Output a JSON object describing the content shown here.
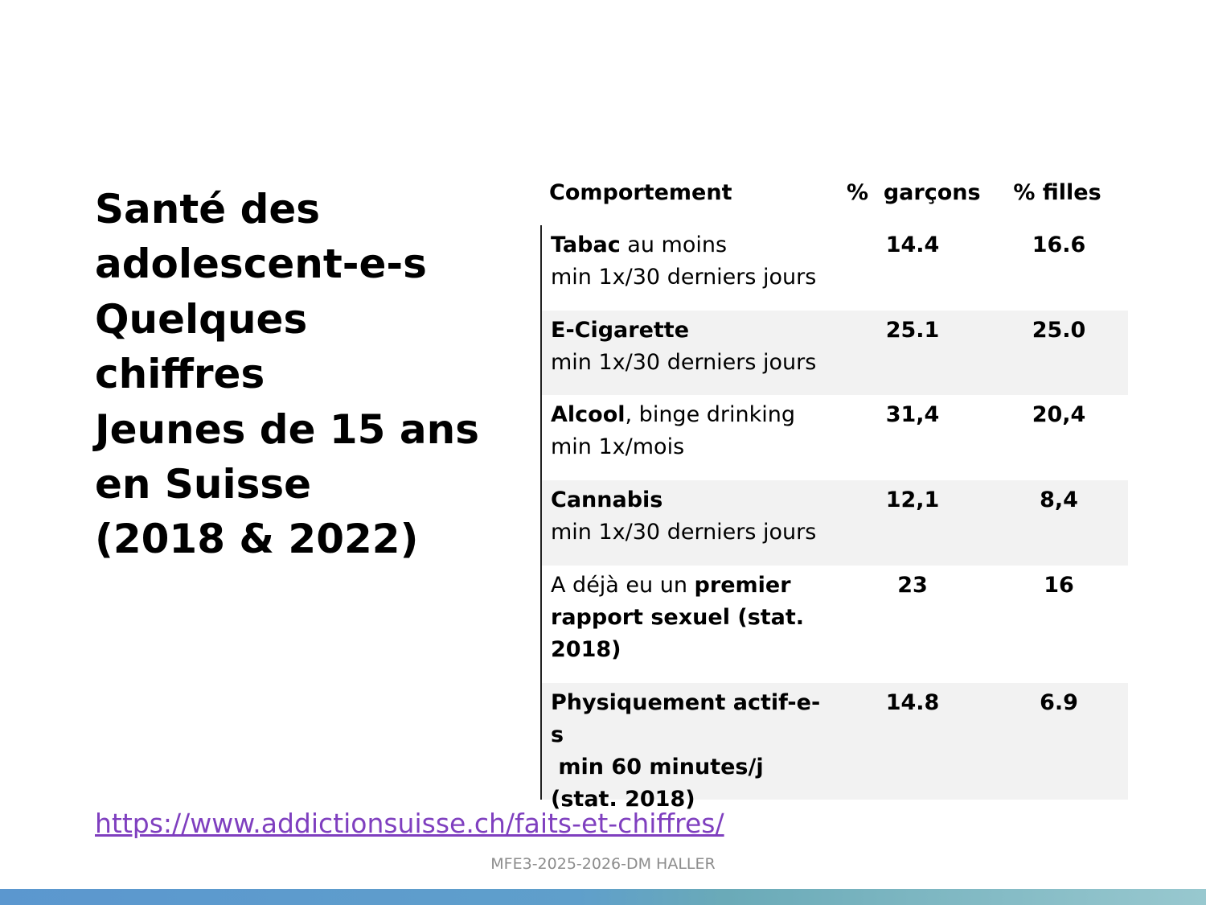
{
  "title_lines": [
    "Santé des",
    "adolescent-e-s",
    "Quelques",
    "chiffres",
    "Jeunes de 15 ans",
    "en Suisse",
    "(2018 & 2022)"
  ],
  "table": {
    "headers": {
      "behavior": "Comportement",
      "boys": "%  garçons",
      "girls": "% filles"
    },
    "rows": [
      {
        "line1_bold": "Tabac",
        "line1_rest": " au moins",
        "line2": "min 1x/30 derniers jours",
        "boys": "14.4",
        "girls": "16.6"
      },
      {
        "line1_bold": "E-Cigarette",
        "line2": "min 1x/30 derniers jours",
        "boys": "25.1",
        "girls": "25.0"
      },
      {
        "line1_bold": "Alcool",
        "line1_rest": ", binge drinking",
        "line2": "min 1x/mois",
        "boys": "31,4",
        "girls": "20,4"
      },
      {
        "line1_bold": "Cannabis",
        "line2": "min 1x/30 derniers jours",
        "boys": "12,1",
        "girls": "8,4"
      },
      {
        "line1_plain": "A déjà eu un ",
        "line1_bold": "premier",
        "line2": "rapport sexuel (stat.",
        "line3": "2018)",
        "boys": "23",
        "girls": "16"
      },
      {
        "line1": "Physiquement actif-e-s",
        "line2": " min 60 minutes/j",
        "line3": "(stat. 2018)",
        "boys": "14.8",
        "girls": "6.9"
      }
    ]
  },
  "source_link": "https://www.addictionsuisse.ch/faits-et-chiffres/",
  "footer": "MFE3-2025-2026-DM HALLER",
  "colors": {
    "link": "#7f3fbf",
    "row_shade": "#f2f2f2",
    "footer_text": "#8c8c8c",
    "band_start": "#5b97cf",
    "band_end": "#98c8cf"
  }
}
